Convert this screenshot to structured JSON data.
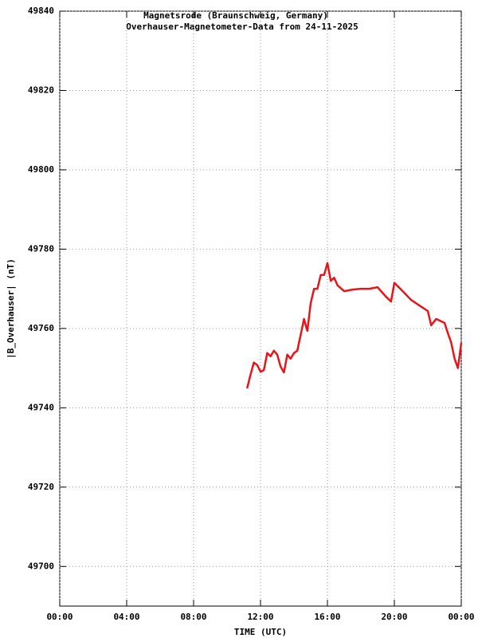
{
  "chart_data": {
    "type": "line",
    "title": "Magnetsrode (Braunschweig, Germany)",
    "subtitle": "Overhauser-Magnetometer-Data from 24-11-2025",
    "x_label": "TIME (UTC)",
    "y_label": "|B_Overhauser| (nT)",
    "xlim": [
      0,
      24
    ],
    "xticks": [
      {
        "value": 0,
        "label": "00:00"
      },
      {
        "value": 4,
        "label": "04:00"
      },
      {
        "value": 8,
        "label": "08:00"
      },
      {
        "value": 12,
        "label": "12:00"
      },
      {
        "value": 16,
        "label": "16:00"
      },
      {
        "value": 20,
        "label": "20:00"
      },
      {
        "value": 24,
        "label": "00:00"
      }
    ],
    "ylim": [
      49690,
      49840
    ],
    "yticks": [
      49700,
      49720,
      49740,
      49760,
      49780,
      49800,
      49820,
      49840
    ],
    "grid": true,
    "series": [
      {
        "color": "#e8141a",
        "x": [
          11.2,
          11.4,
          11.6,
          11.8,
          12.0,
          12.2,
          12.4,
          12.6,
          12.8,
          13.0,
          13.2,
          13.4,
          13.6,
          13.8,
          14.0,
          14.2,
          14.4,
          14.6,
          14.8,
          15.0,
          15.2,
          15.4,
          15.6,
          15.8,
          16.0,
          16.2,
          16.4,
          16.6,
          17.0,
          17.5,
          18.0,
          18.5,
          19.0,
          19.5,
          19.8,
          20.0,
          20.5,
          21.0,
          21.5,
          22.0,
          22.2,
          22.5,
          23.0,
          23.2,
          23.4,
          23.6,
          23.8,
          24.0
        ],
        "values": [
          49744.9,
          49748.3,
          49751.4,
          49750.8,
          49749.1,
          49749.5,
          49753.8,
          49753.0,
          49754.4,
          49753.4,
          49750.4,
          49748.9,
          49753.4,
          49752.4,
          49753.8,
          49754.4,
          49758.4,
          49762.4,
          49759.4,
          49766.4,
          49770.0,
          49770.0,
          49773.5,
          49773.5,
          49776.5,
          49772.0,
          49772.8,
          49770.9,
          49769.4,
          49769.8,
          49770.0,
          49770.0,
          49770.4,
          49768.0,
          49766.8,
          49771.5,
          49769.4,
          49767.2,
          49765.8,
          49764.4,
          49760.8,
          49762.4,
          49761.4,
          49758.8,
          49756.4,
          49752.4,
          49750.0,
          49756.4
        ]
      }
    ]
  }
}
